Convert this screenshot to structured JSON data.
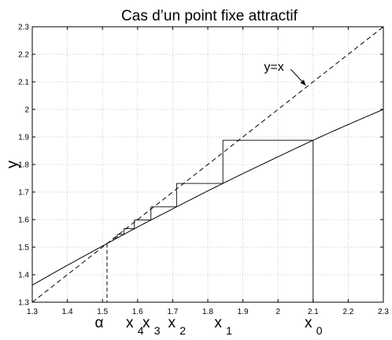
{
  "chart_data": {
    "type": "line",
    "title": "Cas d’un point fixe attractif",
    "xlabel": "",
    "ylabel": "y",
    "xlim": [
      1.3,
      2.3
    ],
    "ylim": [
      1.3,
      2.3
    ],
    "grid": true,
    "x_ticks": [
      "1.3",
      "1.4",
      "1.5",
      "1.6",
      "1.7",
      "1.8",
      "1.9",
      "2",
      "2.1",
      "2.2",
      "2.3"
    ],
    "y_ticks": [
      "1.3",
      "1.4",
      "1.5",
      "1.6",
      "1.7",
      "1.8",
      "1.9",
      "2",
      "2.1",
      "2.2",
      "2.3"
    ],
    "series": [
      {
        "name": "y=x",
        "style": "dashed",
        "x": [
          1.3,
          2.3
        ],
        "y": [
          1.3,
          2.3
        ]
      },
      {
        "style": "solid",
        "x": [
          1.3,
          1.4,
          1.5,
          1.6,
          1.7,
          1.8,
          1.9,
          2.0,
          2.1,
          2.2,
          2.3
        ],
        "y": [
          1.362,
          1.434,
          1.504,
          1.573,
          1.639,
          1.704,
          1.767,
          1.828,
          1.888,
          1.945,
          2.0
        ]
      }
    ],
    "cobweb": {
      "iterates": [
        {
          "label": "x",
          "sub": "0",
          "x": 2.1
        },
        {
          "label": "x",
          "sub": "1",
          "x": 1.843
        },
        {
          "label": "x",
          "sub": "2",
          "x": 1.711
        },
        {
          "label": "x",
          "sub": "3",
          "x": 1.638
        },
        {
          "label": "x",
          "sub": "4",
          "x": 1.591
        },
        {
          "x": 1.561
        },
        {
          "x": 1.542
        },
        {
          "x": 1.531
        }
      ],
      "fixed_point": {
        "label": "α",
        "x": 1.513,
        "y": 1.513
      }
    },
    "annotations": [
      {
        "text": "y=x",
        "x": 1.96,
        "y": 2.14,
        "arrow_to": [
          2.07,
          2.07
        ]
      }
    ]
  }
}
